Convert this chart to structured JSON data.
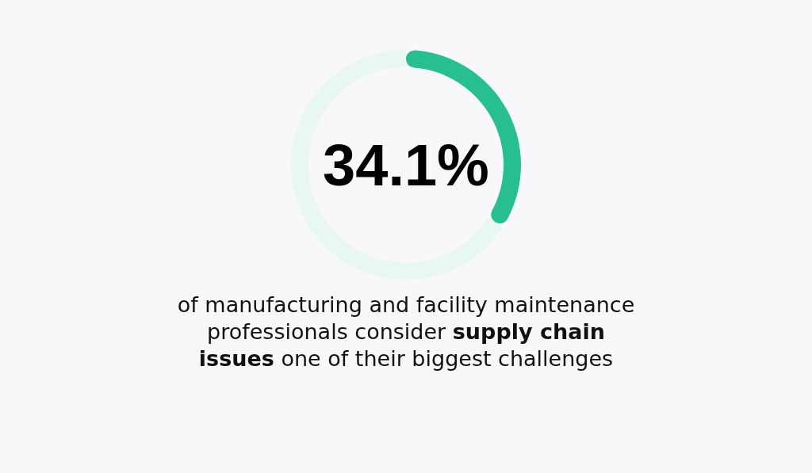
{
  "chart_data": {
    "type": "donut",
    "categories": [
      null,
      null
    ],
    "values": [
      34.1,
      65.9
    ],
    "colors": [
      "#27bf8f",
      "#e9f7f2"
    ],
    "title": "34.1%",
    "annotations": [
      "of manufacturing and facility maintenance professionals consider",
      "supply chain issues",
      "one of their biggest challenges"
    ]
  }
}
